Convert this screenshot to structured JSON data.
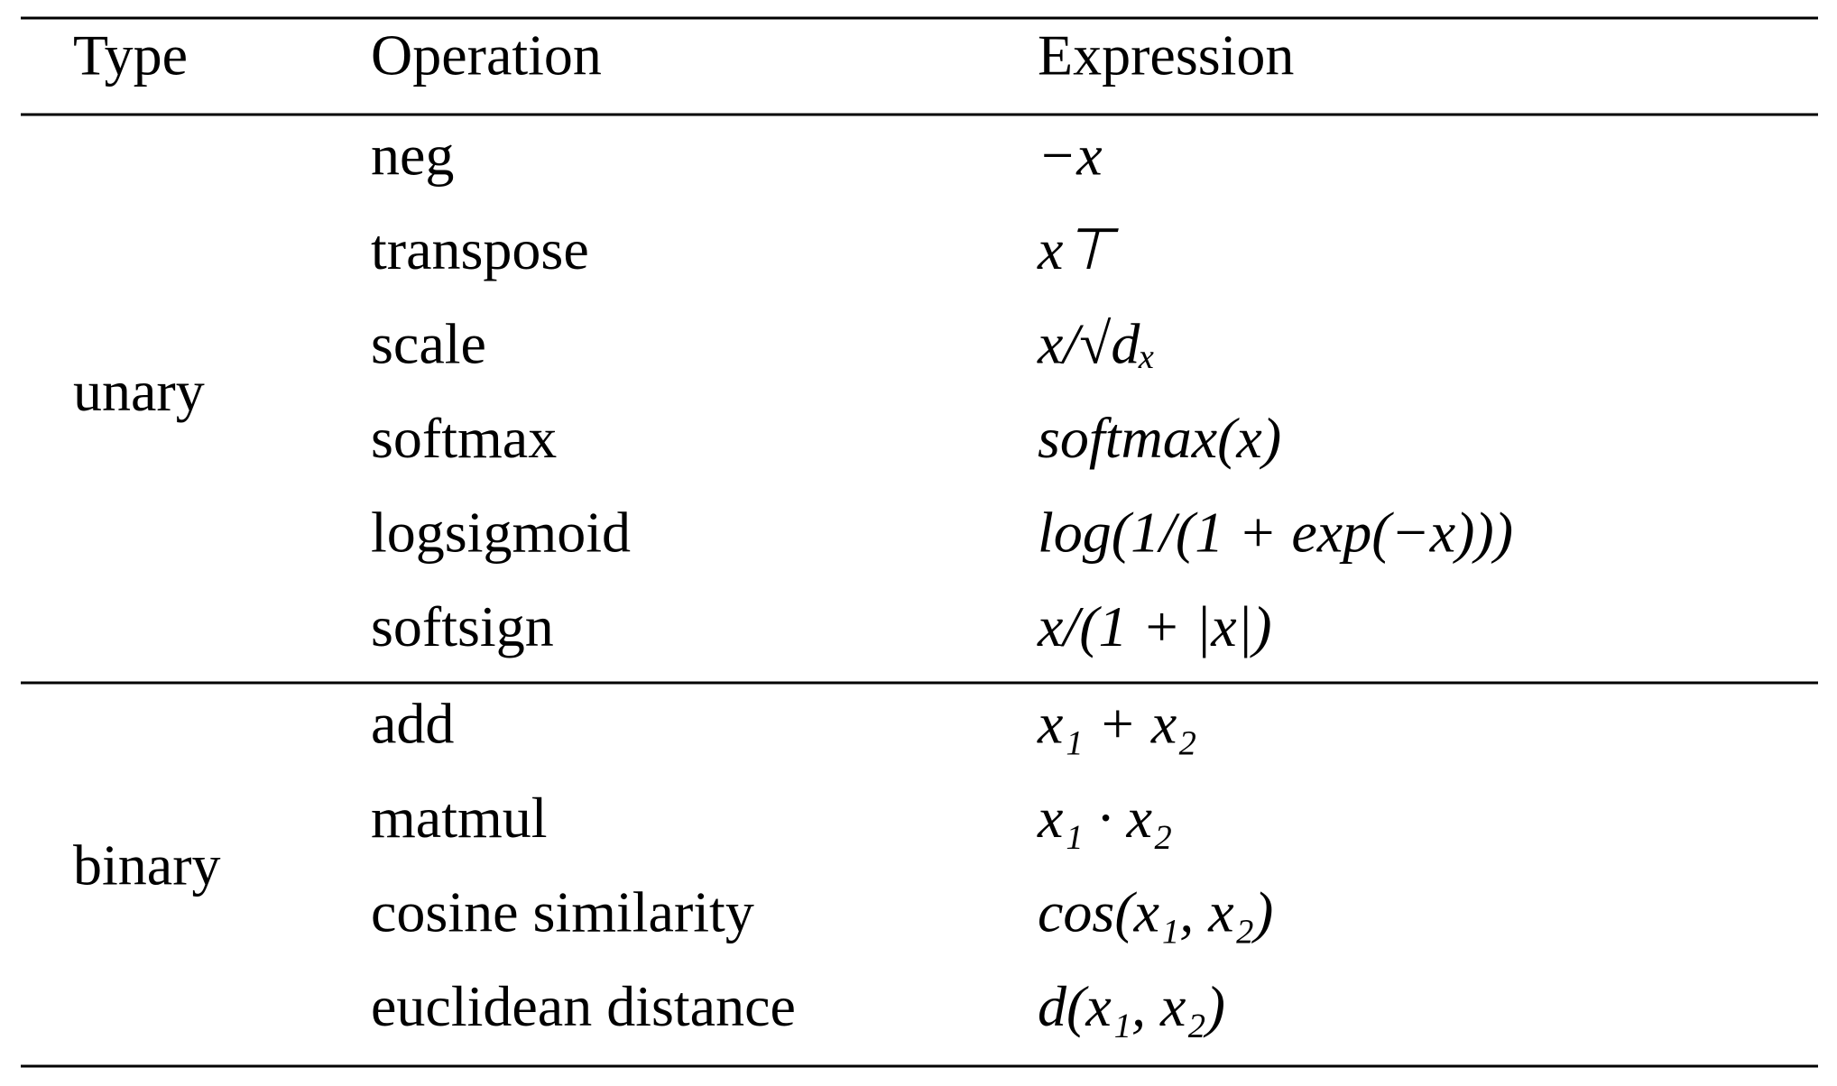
{
  "table": {
    "header": [
      "Type",
      "Operation",
      "Expression"
    ],
    "groups": [
      {
        "type": "unary",
        "rows": [
          [
            "neg",
            "−x"
          ],
          [
            "transpose",
            "x⊤"
          ],
          [
            "scale",
            "x/√dₓ"
          ],
          [
            "softmax",
            "softmax(x)"
          ],
          [
            "logsigmoid",
            "log(1/(1 + exp(−x)))"
          ],
          [
            "softsign",
            "x/(1 + |x|)"
          ]
        ]
      },
      {
        "type": "binary",
        "rows": [
          [
            "add",
            "x₁ + x₂"
          ],
          [
            "matmul",
            "x₁ · x₂"
          ],
          [
            "cosine similarity",
            "cos(x₁, x₂)"
          ],
          [
            "euclidean distance",
            "d(x₁, x₂)"
          ]
        ]
      }
    ]
  }
}
